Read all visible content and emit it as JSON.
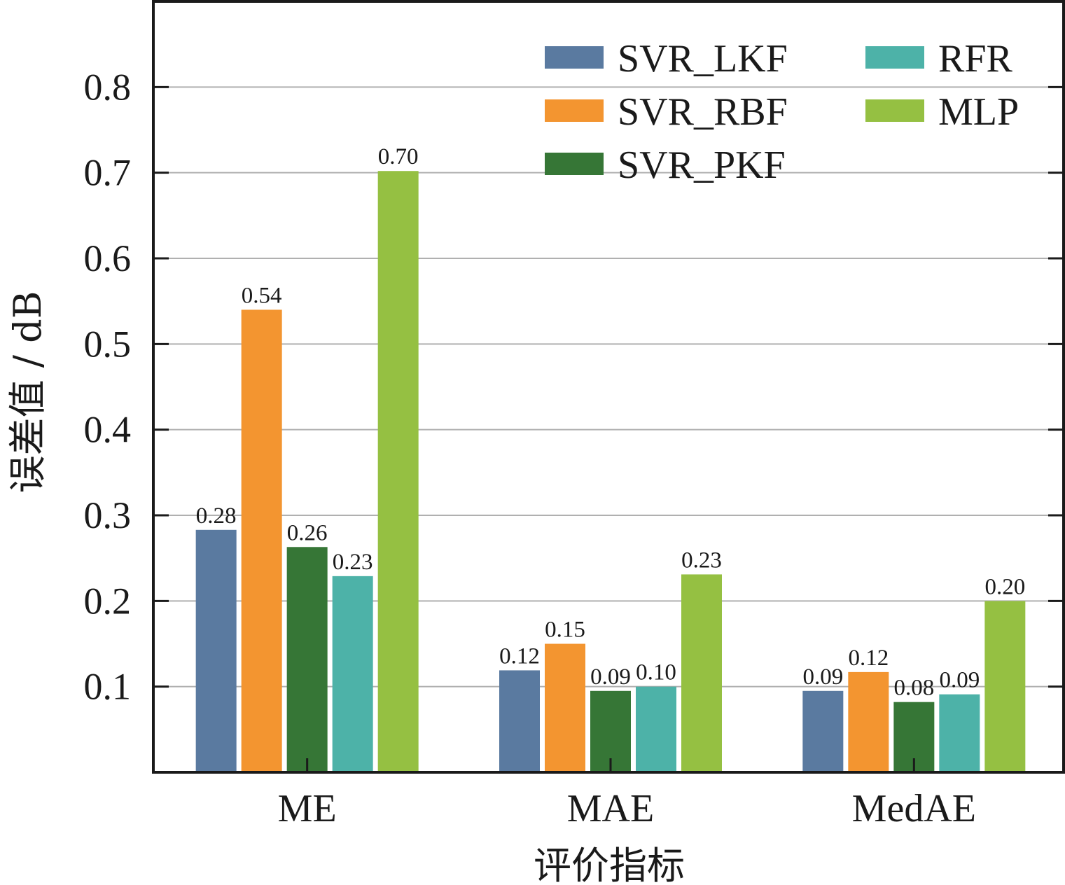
{
  "chart_data": {
    "type": "bar",
    "xlabel": "评价指标",
    "ylabel": "误差值 / dB",
    "categories": [
      "ME",
      "MAE",
      "MedAE"
    ],
    "ylim": [
      0,
      0.9
    ],
    "yticks": [
      0.1,
      0.2,
      0.3,
      0.4,
      0.5,
      0.6,
      0.7,
      0.8
    ],
    "grid": "horizontal",
    "legend_position": "top-right",
    "series": [
      {
        "name": "SVR_LKF",
        "color": "#5a7aa0",
        "values": [
          0.283,
          0.119,
          0.095
        ],
        "labels": [
          "0.28",
          "0.12",
          "0.09"
        ]
      },
      {
        "name": "SVR_RBF",
        "color": "#f39530",
        "values": [
          0.54,
          0.15,
          0.117
        ],
        "labels": [
          "0.54",
          "0.15",
          "0.12"
        ]
      },
      {
        "name": "SVR_PKF",
        "color": "#367636",
        "values": [
          0.263,
          0.095,
          0.082
        ],
        "labels": [
          "0.26",
          "0.09",
          "0.08"
        ]
      },
      {
        "name": "RFR",
        "color": "#4db2a8",
        "values": [
          0.229,
          0.1,
          0.091
        ],
        "labels": [
          "0.23",
          "0.10",
          "0.09"
        ]
      },
      {
        "name": "MLP",
        "color": "#95c042",
        "values": [
          0.702,
          0.231,
          0.2
        ],
        "labels": [
          "0.70",
          "0.23",
          "0.20"
        ]
      }
    ]
  }
}
